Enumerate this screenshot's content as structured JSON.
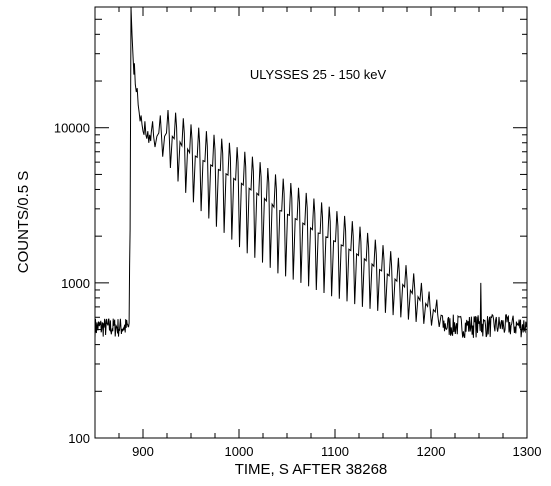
{
  "chart_data": {
    "type": "line",
    "annotation": "ULYSSES 25 - 150 keV",
    "xlabel": "TIME, S AFTER 38268",
    "ylabel": "COUNTS/0.5 S",
    "xlim": [
      850,
      1300
    ],
    "ylim": [
      100,
      60000
    ],
    "yscale": "log",
    "x_ticks": [
      900,
      1000,
      1100,
      1200,
      1300
    ],
    "y_ticks": [
      100,
      1000,
      10000
    ],
    "grid": false,
    "series": [
      {
        "background_level": 520,
        "rise_time": 886,
        "peak_time": 887.5,
        "peak_counts": 60000,
        "pulse_period": 8,
        "pulses": [
          {
            "x": 912,
            "max": 11000,
            "min": 7500
          },
          {
            "x": 920,
            "max": 12000,
            "min": 6500
          },
          {
            "x": 928,
            "max": 13000,
            "min": 5500
          },
          {
            "x": 936,
            "max": 12500,
            "min": 4500
          },
          {
            "x": 944,
            "max": 11500,
            "min": 3800
          },
          {
            "x": 952,
            "max": 10500,
            "min": 3300
          },
          {
            "x": 960,
            "max": 10000,
            "min": 2900
          },
          {
            "x": 968,
            "max": 9500,
            "min": 2600
          },
          {
            "x": 976,
            "max": 9000,
            "min": 2300
          },
          {
            "x": 984,
            "max": 8500,
            "min": 2100
          },
          {
            "x": 992,
            "max": 8000,
            "min": 1900
          },
          {
            "x": 1000,
            "max": 7500,
            "min": 1700
          },
          {
            "x": 1008,
            "max": 7000,
            "min": 1550
          },
          {
            "x": 1016,
            "max": 6500,
            "min": 1450
          },
          {
            "x": 1024,
            "max": 6000,
            "min": 1350
          },
          {
            "x": 1032,
            "max": 5500,
            "min": 1250
          },
          {
            "x": 1040,
            "max": 5000,
            "min": 1150
          },
          {
            "x": 1048,
            "max": 4700,
            "min": 1100
          },
          {
            "x": 1056,
            "max": 4400,
            "min": 1050
          },
          {
            "x": 1064,
            "max": 4100,
            "min": 1000
          },
          {
            "x": 1072,
            "max": 3800,
            "min": 950
          },
          {
            "x": 1080,
            "max": 3500,
            "min": 900
          },
          {
            "x": 1088,
            "max": 3300,
            "min": 860
          },
          {
            "x": 1096,
            "max": 3100,
            "min": 820
          },
          {
            "x": 1104,
            "max": 2900,
            "min": 790
          },
          {
            "x": 1112,
            "max": 2700,
            "min": 760
          },
          {
            "x": 1120,
            "max": 2500,
            "min": 730
          },
          {
            "x": 1128,
            "max": 2300,
            "min": 700
          },
          {
            "x": 1136,
            "max": 2100,
            "min": 680
          },
          {
            "x": 1144,
            "max": 1900,
            "min": 660
          },
          {
            "x": 1152,
            "max": 1750,
            "min": 640
          },
          {
            "x": 1160,
            "max": 1600,
            "min": 620
          },
          {
            "x": 1168,
            "max": 1450,
            "min": 600
          },
          {
            "x": 1176,
            "max": 1300,
            "min": 580
          },
          {
            "x": 1184,
            "max": 1150,
            "min": 560
          },
          {
            "x": 1192,
            "max": 1000,
            "min": 545
          },
          {
            "x": 1200,
            "max": 880,
            "min": 530
          },
          {
            "x": 1208,
            "max": 780,
            "min": 520
          }
        ]
      }
    ]
  }
}
